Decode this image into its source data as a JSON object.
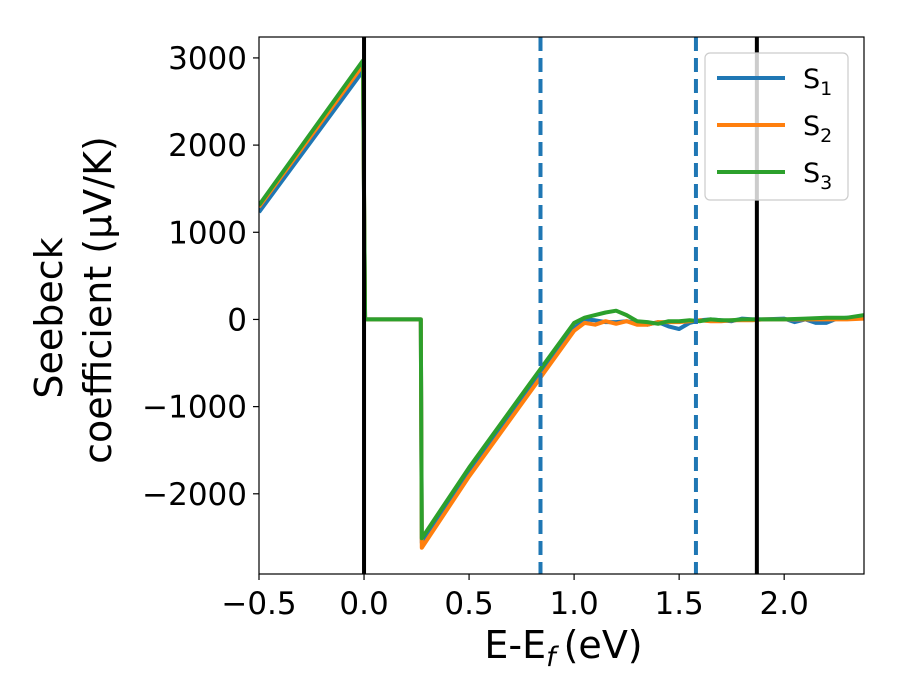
{
  "chart_data": {
    "type": "line",
    "xlabel": "E-E_f (eV)",
    "xlabel_parts": {
      "main": "E-E",
      "sub": "f",
      "unit": "(eV)"
    },
    "ylabel_lines": [
      "Seebeck",
      "coefficient  (μV/K)"
    ],
    "xlim": [
      -0.5,
      2.38
    ],
    "ylim": [
      -2920,
      3240
    ],
    "xticks": [
      -0.5,
      0.0,
      0.5,
      1.0,
      1.5,
      2.0
    ],
    "xtick_labels": [
      "−0.5",
      "0.0",
      "0.5",
      "1.0",
      "1.5",
      "2.0"
    ],
    "yticks": [
      -2000,
      -1000,
      0,
      1000,
      2000,
      3000
    ],
    "ytick_labels": [
      "−2000",
      "−1000",
      "0",
      "1000",
      "2000",
      "3000"
    ],
    "grid": false,
    "legend_position": "upper right",
    "vertical_lines": [
      {
        "x": 0.0,
        "style": "solid",
        "color": "#000000"
      },
      {
        "x": 0.84,
        "style": "dashed",
        "color": "#1f77b4"
      },
      {
        "x": 1.58,
        "style": "dashed",
        "color": "#1f77b4"
      },
      {
        "x": 1.87,
        "style": "solid",
        "color": "#000000"
      }
    ],
    "series": [
      {
        "name": "S1",
        "label_main": "S",
        "label_sub": "1",
        "color": "#1f77b4",
        "x": [
          -0.5,
          -0.005,
          0.0,
          0.005,
          0.27,
          0.275,
          0.5,
          0.8,
          1.0,
          1.05,
          1.1,
          1.15,
          1.2,
          1.25,
          1.3,
          1.35,
          1.4,
          1.45,
          1.5,
          1.55,
          1.6,
          1.65,
          1.7,
          1.75,
          1.8,
          1.85,
          1.9,
          2.0,
          2.05,
          2.1,
          2.15,
          2.2,
          2.25,
          2.3,
          2.38
        ],
        "y": [
          1230,
          2850,
          1420,
          0,
          0,
          -2560,
          -1750,
          -760,
          -100,
          0,
          -10,
          -30,
          -30,
          -20,
          -40,
          -60,
          -30,
          -80,
          -110,
          -40,
          -10,
          0,
          -10,
          -20,
          10,
          0,
          0,
          10,
          -30,
          0,
          -40,
          -40,
          10,
          20,
          30
        ]
      },
      {
        "name": "S2",
        "label_main": "S",
        "label_sub": "2",
        "color": "#ff7f0e",
        "x": [
          -0.5,
          -0.005,
          0.0,
          0.005,
          0.27,
          0.275,
          0.5,
          0.8,
          1.0,
          1.05,
          1.1,
          1.15,
          1.2,
          1.25,
          1.3,
          1.35,
          1.4,
          1.45,
          1.5,
          1.55,
          1.6,
          1.65,
          1.7,
          1.75,
          1.8,
          1.85,
          1.9,
          2.0,
          2.1,
          2.2,
          2.3,
          2.38
        ],
        "y": [
          1290,
          2920,
          1460,
          0,
          0,
          -2620,
          -1800,
          -800,
          -130,
          -40,
          -60,
          -20,
          -50,
          -20,
          -60,
          -60,
          -30,
          -30,
          -30,
          -20,
          -10,
          -20,
          -20,
          -10,
          -10,
          -10,
          0,
          0,
          0,
          0,
          0,
          10
        ]
      },
      {
        "name": "S3",
        "label_main": "S",
        "label_sub": "3",
        "color": "#2ca02c",
        "x": [
          -0.5,
          -0.005,
          0.0,
          0.005,
          0.27,
          0.275,
          0.5,
          0.8,
          1.0,
          1.05,
          1.1,
          1.15,
          1.2,
          1.25,
          1.3,
          1.35,
          1.4,
          1.45,
          1.5,
          1.55,
          1.6,
          1.65,
          1.7,
          1.75,
          1.8,
          1.85,
          1.9,
          2.0,
          2.1,
          2.2,
          2.3,
          2.38
        ],
        "y": [
          1310,
          2970,
          1480,
          0,
          0,
          -2510,
          -1700,
          -700,
          -40,
          20,
          50,
          80,
          100,
          50,
          -20,
          -30,
          -50,
          -20,
          -20,
          -10,
          -20,
          0,
          -10,
          -10,
          0,
          0,
          0,
          0,
          10,
          20,
          20,
          50
        ]
      }
    ]
  }
}
